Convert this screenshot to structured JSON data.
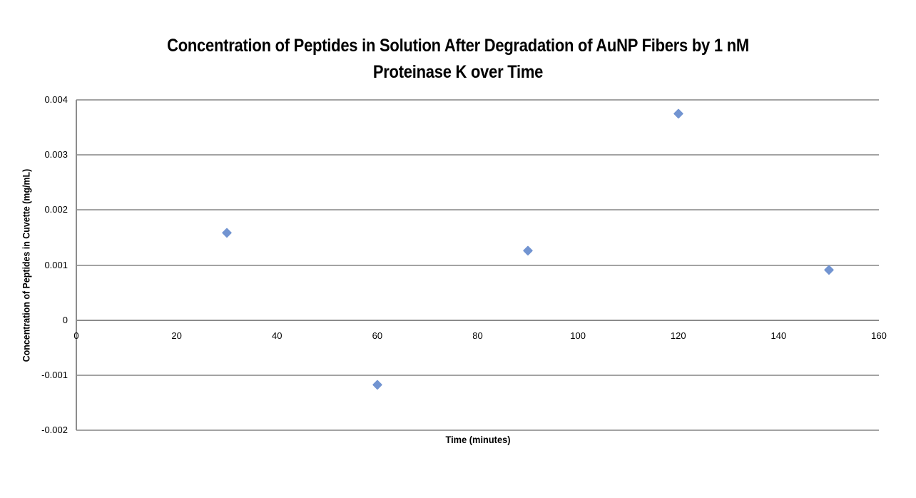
{
  "chart": {
    "title_lines": [
      "Concentration of Peptides in Solution After Degradation of AuNP Fibers by 1 nM",
      "Proteinase K over Time"
    ]
  },
  "chart_data": {
    "type": "scatter",
    "title": "Concentration of Peptides in Solution After Degradation of AuNP Fibers by 1 nM Proteinase K over Time",
    "xlabel": "Time (minutes)",
    "ylabel": "Concentration of Peptides in Cuvette (mg/mL)",
    "xlim": [
      0,
      160
    ],
    "ylim": [
      -0.002,
      0.004
    ],
    "x_ticks": [
      0,
      20,
      40,
      60,
      80,
      100,
      120,
      140,
      160
    ],
    "y_ticks": [
      0.004,
      0.003,
      0.002,
      0.001,
      0,
      -0.001,
      -0.002
    ],
    "y_tick_labels": [
      "0.004",
      "0.003",
      "0.002",
      "0.001",
      "0",
      "-0.001",
      "-0.002"
    ],
    "grid": "horizontal-major",
    "legend": "none",
    "marker": {
      "shape": "diamond",
      "color": "#7294d1"
    },
    "gridline_color": "#a3a3a3",
    "axis_line_color": "#8c8c8c",
    "series": [
      {
        "x": [
          30,
          60,
          90,
          120,
          150
        ],
        "y": [
          0.00159,
          -0.00117,
          0.00127,
          0.00376,
          0.00091
        ]
      }
    ]
  }
}
